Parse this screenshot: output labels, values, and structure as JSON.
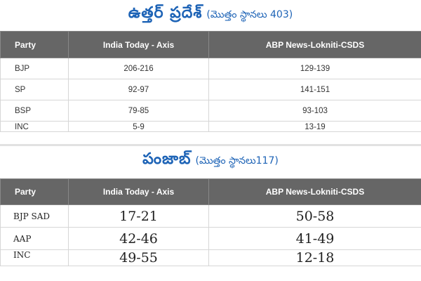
{
  "uttar_pradesh": {
    "title": "ఉత్తర్ ప్రదేశ్",
    "subtitle": "(మొత్తం స్థానలు 403)",
    "headers": [
      "Party",
      "India Today - Axis",
      "ABP News-Lokniti-CSDS"
    ],
    "rows": [
      {
        "party": "BJP",
        "india_today": "206-216",
        "abp": "129-139"
      },
      {
        "party": "SP",
        "india_today": "92-97",
        "abp": "141-151"
      },
      {
        "party": "BSP",
        "india_today": "79-85",
        "abp": "93-103"
      },
      {
        "party": "INC",
        "india_today": "5-9",
        "abp": "13-19"
      }
    ]
  },
  "punjab": {
    "title": "పంజాబ్",
    "subtitle": "(మొత్తం స్థానలు117)",
    "headers": [
      "Party",
      "India Today - Axis",
      "ABP News-Lokniti-CSDS"
    ],
    "rows": [
      {
        "party": "BJP SAD",
        "india_today": "17-21",
        "abp": "50-58"
      },
      {
        "party": "AAP",
        "india_today": "42-46",
        "abp": "41-49"
      },
      {
        "party": "INC",
        "india_today": "49-55",
        "abp": "12-18"
      }
    ]
  }
}
